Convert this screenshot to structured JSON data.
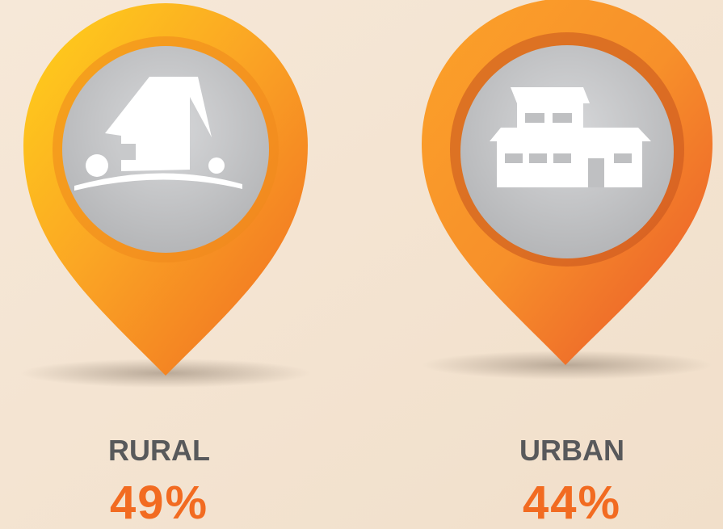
{
  "items": [
    {
      "label": "RURAL",
      "value": "49%"
    },
    {
      "label": "URBAN",
      "value": "44%"
    }
  ]
}
